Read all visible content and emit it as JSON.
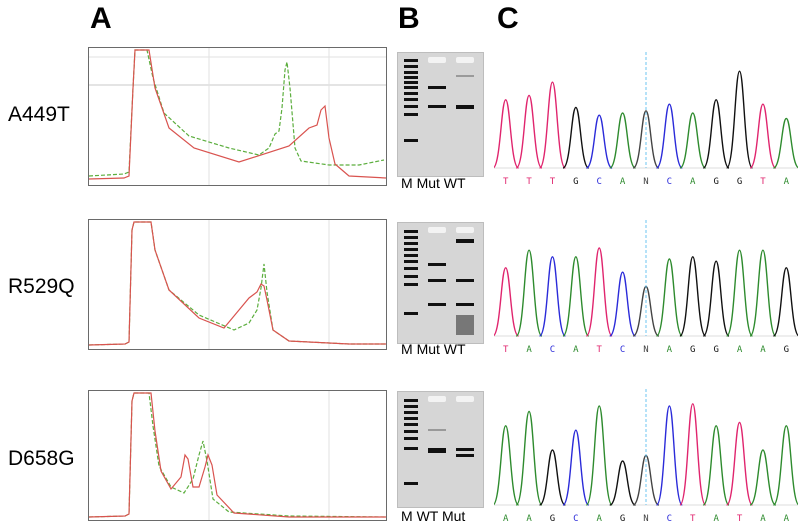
{
  "panels": {
    "a": "A",
    "b": "B",
    "c": "C"
  },
  "mutations": [
    {
      "name": "A449T",
      "gel_lanes": [
        "M",
        "Mut",
        "WT"
      ],
      "sequence": "TTTGCANCAGGTA",
      "colors": {
        "mutant_trace": "#d9534f",
        "wildtype_trace": "#5cae3e"
      }
    },
    {
      "name": "R529Q",
      "gel_lanes": [
        "M",
        "Mut",
        "WT"
      ],
      "sequence": "TACATCNAGGAAG",
      "colors": {
        "mutant_trace": "#d9534f",
        "wildtype_trace": "#5cae3e"
      }
    },
    {
      "name": "D658G",
      "gel_lanes": [
        "M",
        "WT",
        "Mut"
      ],
      "sequence": "AAGCAGNCTATAA",
      "colors": {
        "mutant_trace": "#d9534f",
        "wildtype_trace": "#5cae3e"
      }
    }
  ],
  "base_colors": {
    "A": "#2e8b2e",
    "C": "#2b2bd9",
    "G": "#111111",
    "T": "#e0256e",
    "N": "#444444"
  }
}
